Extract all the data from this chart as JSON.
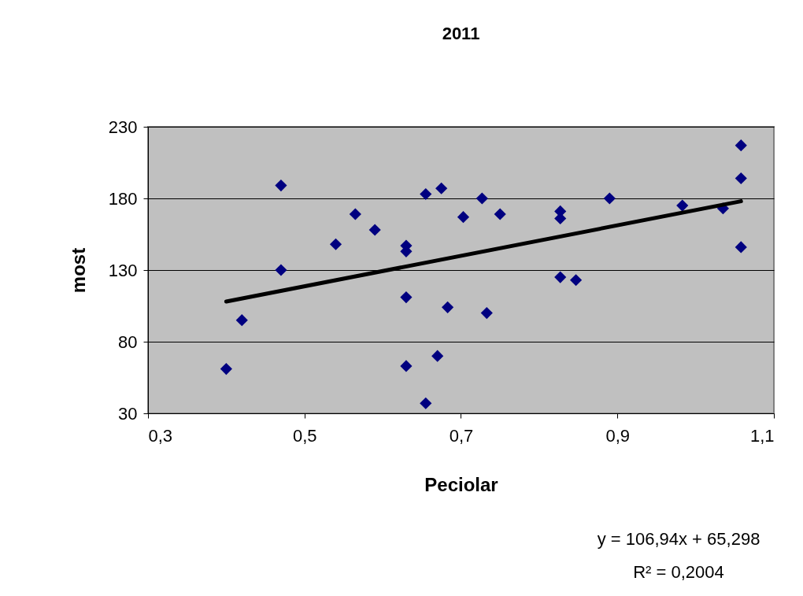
{
  "chart_data": {
    "type": "scatter",
    "title": "2011",
    "xlabel": "Peciolar",
    "ylabel": "most",
    "xlim": [
      0.3,
      1.1
    ],
    "ylim": [
      30,
      230
    ],
    "xticks": [
      {
        "value": 0.3,
        "label": "0,3"
      },
      {
        "value": 0.5,
        "label": "0,5"
      },
      {
        "value": 0.7,
        "label": "0,7"
      },
      {
        "value": 0.9,
        "label": "0,9"
      },
      {
        "value": 1.1,
        "label": "1,1"
      }
    ],
    "yticks": [
      30,
      80,
      130,
      180,
      230
    ],
    "grid": "y",
    "series": [
      {
        "marker": "diamond",
        "color": "#000080",
        "x": [
          0.4,
          0.42,
          0.47,
          0.47,
          0.54,
          0.565,
          0.59,
          0.63,
          0.63,
          0.63,
          0.63,
          0.655,
          0.675,
          0.655,
          0.67,
          0.683,
          0.703,
          0.727,
          0.733,
          0.75,
          0.827,
          0.827,
          0.827,
          0.847,
          0.89,
          0.983,
          1.035,
          1.058,
          1.058,
          1.058
        ],
        "values": [
          61,
          95,
          189,
          130,
          148,
          169,
          158,
          147,
          143,
          111,
          63,
          183,
          187,
          37,
          70,
          104,
          167,
          180,
          100,
          169,
          171,
          166,
          125,
          123,
          180,
          175,
          173,
          217,
          194,
          146
        ]
      },
      {
        "type": "line",
        "color": "#000000",
        "x": [
          0.4,
          1.058
        ],
        "values": [
          108,
          178
        ]
      }
    ],
    "annotations": [
      "y = 106,94x + 65,298",
      "R² = 0,2004"
    ]
  }
}
